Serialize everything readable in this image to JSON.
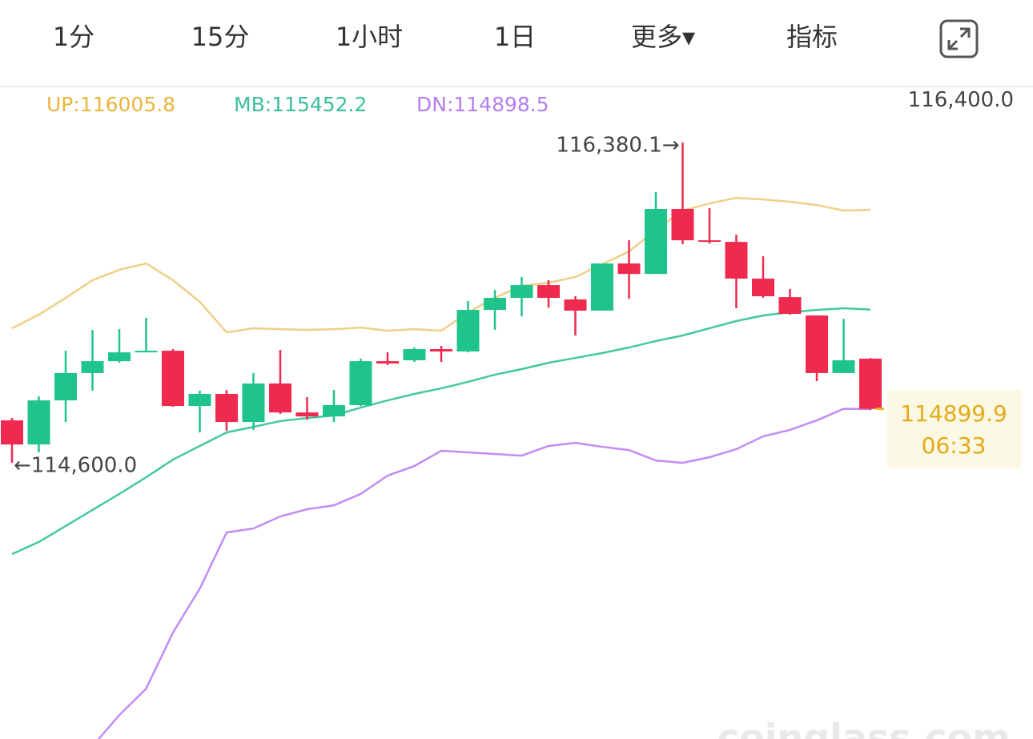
{
  "tabs": [
    "1分",
    "15分",
    "1小时",
    "1日",
    "更多▾",
    "指标"
  ],
  "active_tab": 1,
  "watermark": "coinglass.com",
  "chart_data": {
    "type": "candlestick",
    "up_color": "#1fc48a",
    "down_color": "#f0294e",
    "ylim": [
      113065,
      116683
    ],
    "yticks": [
      {
        "value": 116400,
        "label": "116,400.0"
      }
    ],
    "open": [
      114836,
      114702,
      114947,
      115099,
      115165,
      115214,
      115223,
      114916,
      114983,
      114827,
      115041,
      114880,
      114858,
      114921,
      115165,
      115170,
      115232,
      115219,
      115450,
      115517,
      115588,
      115508,
      115446,
      115708,
      115650,
      116011,
      115837,
      115828,
      115624,
      115521,
      115419,
      115099,
      115179
    ],
    "high": [
      114849,
      114969,
      115223,
      115339,
      115343,
      115406,
      115232,
      115001,
      115005,
      115099,
      115228,
      114965,
      115005,
      115179,
      115214,
      115241,
      115250,
      115499,
      115561,
      115633,
      115615,
      115526,
      115708,
      115837,
      116104,
      116380.1,
      116015,
      115868,
      115748,
      115566,
      115419,
      115401,
      115183
    ],
    "low": [
      114600.0,
      114658,
      114827,
      115001,
      115156,
      115214,
      114912,
      114769,
      114778,
      114783,
      114872,
      114840,
      114827,
      114916,
      115143,
      115161,
      115161,
      115214,
      115339,
      115414,
      115463,
      115308,
      115446,
      115512,
      115650,
      115815,
      115819,
      115459,
      115517,
      115423,
      115054,
      115099,
      114894
    ],
    "close": [
      114702,
      114947,
      115099,
      115165,
      115214,
      115223,
      114916,
      114983,
      114827,
      115041,
      114880,
      114858,
      114921,
      115165,
      115152,
      115232,
      115219,
      115450,
      115517,
      115588,
      115517,
      115446,
      115708,
      115650,
      116011,
      115837,
      115828,
      115624,
      115526,
      115428,
      115099,
      115170,
      114899.9
    ],
    "series": [
      {
        "name": "UP:116005.8",
        "color": "#f0cf86",
        "text_color": "#e9b53c",
        "values": [
          115348,
          115423,
          115517,
          115615,
          115673,
          115708,
          115615,
          115495,
          115325,
          115348,
          115343,
          115339,
          115343,
          115352,
          115334,
          115343,
          115334,
          115437,
          115517,
          115584,
          115601,
          115633,
          115704,
          115775,
          115895,
          116002,
          116042,
          116073,
          116064,
          116051,
          116033,
          116002,
          116005.8
        ]
      },
      {
        "name": "MB:115452.2",
        "color": "#45c7a4",
        "text_color": "#3dbf9c",
        "values": [
          114093,
          114160,
          114249,
          114338,
          114427,
          114520,
          114618,
          114694,
          114769,
          114800,
          114832,
          114849,
          114863,
          114907,
          114947,
          114983,
          115014,
          115050,
          115090,
          115121,
          115156,
          115183,
          115210,
          115241,
          115277,
          115308,
          115348,
          115388,
          115419,
          115437,
          115450,
          115459,
          115452.2
        ]
      },
      {
        "name": "DN:114898.5",
        "color": "#c08cf5",
        "text_color": "#b57ef0",
        "values": [
          null,
          null,
          null,
          113025,
          113198,
          113345,
          113657,
          113901,
          114213,
          114235,
          114302,
          114342,
          114364,
          114427,
          114529,
          114582,
          114667,
          114658,
          114649,
          114640,
          114694,
          114711,
          114689,
          114671,
          114613,
          114600,
          114631,
          114676,
          114747,
          114783,
          114836,
          114900,
          114898.5
        ]
      }
    ],
    "annotations": [
      {
        "index": 25,
        "at": "high",
        "value": 116380.1,
        "label": "116,380.1→"
      },
      {
        "index": 0,
        "at": "low",
        "value": 114600.0,
        "label": "←114,600.0"
      }
    ],
    "last_price": 114899.9,
    "countdown": "06:33"
  }
}
